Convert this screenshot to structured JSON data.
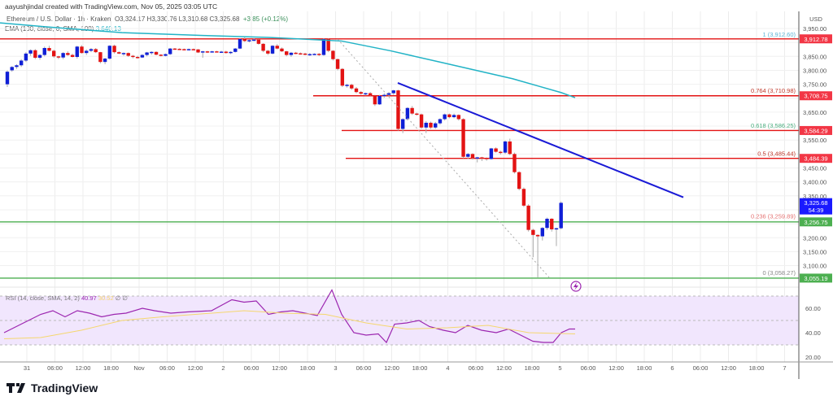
{
  "header": {
    "attribution": "aayushjindal created with TradingView.com, Nov 05, 2025 03:05 UTC",
    "symbol": "Ethereum / U.S. Dollar · 1h · Kraken",
    "ohlc": "O3,324.17  H3,330.76  L3,310.68  C3,325.68",
    "change": "+3.85 (+0.12%)",
    "ema_label": "EMA (100, close, 0, SMA, 100)",
    "ema_value": "3,640.13"
  },
  "rsi_legend": {
    "label": "RSI (14, close, SMA, 14, 2)",
    "rsi_value": "40.97",
    "sma_value": "30.52",
    "extra": "∅  ∅"
  },
  "price_axis": {
    "currency": "USD",
    "ticks": [
      "3,950.00",
      "3,850.00",
      "3,800.00",
      "3,750.00",
      "3,650.00",
      "3,550.00",
      "3,450.00",
      "3,400.00",
      "3,350.00",
      "3,200.00",
      "3,150.00",
      "3,100.00"
    ],
    "badges": [
      {
        "label": "3,912.78",
        "color": "#f23645",
        "price": 3912.78
      },
      {
        "label": "3,708.75",
        "color": "#f23645",
        "price": 3708.75
      },
      {
        "label": "3,584.29",
        "color": "#f23645",
        "price": 3584.29
      },
      {
        "label": "3,484.39",
        "color": "#f23645",
        "price": 3484.39
      },
      {
        "label": "3,325.68",
        "sub": "54:39",
        "color": "#1a1aff",
        "price": 3325.68
      },
      {
        "label": "3,256.75",
        "color": "#4caf50",
        "price": 3256.75
      },
      {
        "label": "3,055.19",
        "color": "#4caf50",
        "price": 3055.19
      }
    ]
  },
  "rsi_axis": {
    "ticks": [
      "60.00",
      "40.00",
      "20.00"
    ]
  },
  "time_axis": {
    "labels": [
      "31",
      "06:00",
      "12:00",
      "18:00",
      "Nov",
      "06:00",
      "12:00",
      "2",
      "06:00",
      "12:00",
      "18:00",
      "3",
      "06:00",
      "12:00",
      "18:00",
      "4",
      "06:00",
      "12:00",
      "18:00",
      "5",
      "06:00",
      "12:00",
      "18:00",
      "6",
      "06:00",
      "12:00",
      "18:00",
      "7"
    ]
  },
  "fib_labels": [
    {
      "text": "1 (3,912.60)",
      "color": "#5ab4d6"
    },
    {
      "text": "0.764 (3,710.98)",
      "color": "#c0392b"
    },
    {
      "text": "0.618 (3,586.25)",
      "color": "#4caf80"
    },
    {
      "text": "0.5 (3,485.44)",
      "color": "#c0392b"
    },
    {
      "text": "0.236 (3,259.89)",
      "color": "#e57373"
    },
    {
      "text": "0 (3,058.27)",
      "color": "#888888"
    }
  ],
  "colors": {
    "up": "#0f1fd6",
    "down": "#e31313",
    "ema": "#22b3c6",
    "trendline": "#1a1ad6",
    "resistance": "#e31313",
    "support": "#4caf50",
    "rsi": "#9c27b0",
    "rsi_sma": "#f5d76e",
    "rsi_band": "#f1e6fd"
  },
  "brand": {
    "name": "TradingView"
  },
  "chart_data": {
    "type": "candlestick",
    "title": "Ethereum / U.S. Dollar · 1h · Kraken",
    "ylabel": "USD",
    "ylim": [
      3040,
      3970
    ],
    "x_labels": [
      "31",
      "06:00",
      "12:00",
      "18:00",
      "Nov",
      "06:00",
      "12:00",
      "2",
      "06:00",
      "12:00",
      "18:00",
      "3",
      "06:00",
      "12:00",
      "18:00",
      "4",
      "06:00",
      "12:00",
      "18:00",
      "5"
    ],
    "last": {
      "open": 3324.17,
      "high": 3330.76,
      "low": 3310.68,
      "close": 3325.68,
      "change": 3.85,
      "change_pct": 0.12
    },
    "ema100_last": 3640.13,
    "horizontal_levels": [
      {
        "price": 3912.78,
        "type": "resistance"
      },
      {
        "price": 3708.75,
        "type": "resistance"
      },
      {
        "price": 3584.29,
        "type": "resistance"
      },
      {
        "price": 3484.39,
        "type": "resistance"
      },
      {
        "price": 3256.75,
        "type": "support"
      },
      {
        "price": 3055.19,
        "type": "support"
      }
    ],
    "fibonacci": [
      {
        "level": 1,
        "price": 3912.6
      },
      {
        "level": 0.764,
        "price": 3710.98
      },
      {
        "level": 0.618,
        "price": 3586.25
      },
      {
        "level": 0.5,
        "price": 3485.44
      },
      {
        "level": 0.236,
        "price": 3259.89
      },
      {
        "level": 0,
        "price": 3058.27
      }
    ],
    "trendline": {
      "from": {
        "x_label": "12:00 (Nov 3)",
        "price": 3755
      },
      "to": {
        "x_label": "6",
        "price": 3345
      }
    },
    "rsi": {
      "period": 14,
      "value": 40.97,
      "sma": 30.52,
      "band": [
        30,
        70
      ],
      "ylim": [
        15,
        75
      ]
    }
  }
}
